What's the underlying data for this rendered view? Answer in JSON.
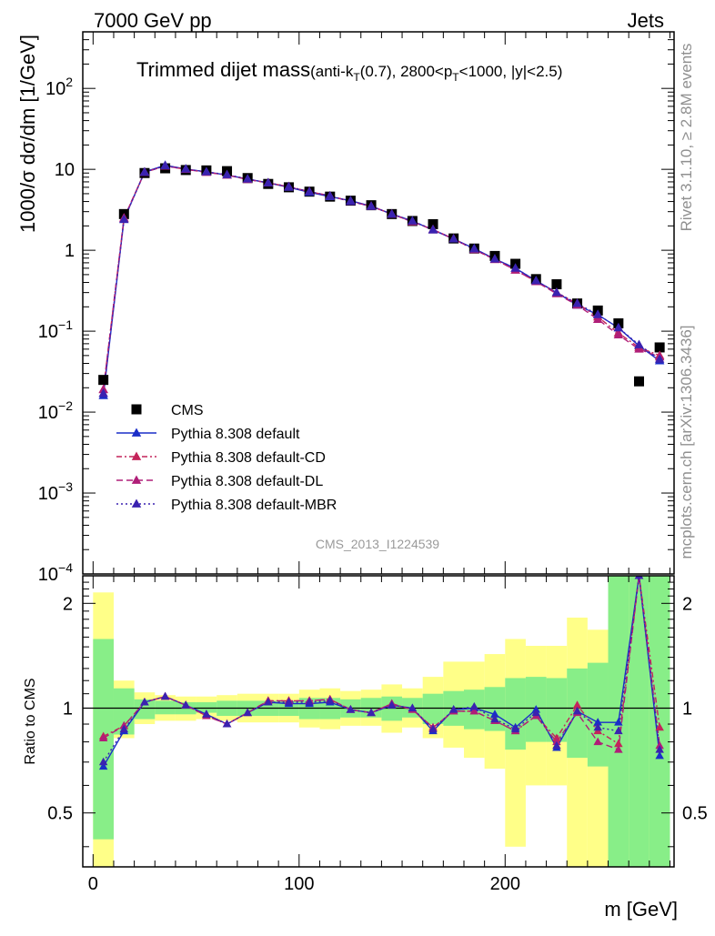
{
  "header": {
    "left": "7000 GeV pp",
    "right": "Jets"
  },
  "side_text": {
    "rivet": "Rivet 3.1.10, ≥ 2.8M events",
    "mcplots": "mcplots.cern.ch [arXiv:1306.3436]"
  },
  "chart_data": [
    {
      "type": "scatter",
      "title_main": "Trimmed dijet mass",
      "title_sub": "(anti-k_T(0.7), 2800<p_T<1000, |y|<2.5)",
      "ylabel": "1000/σ dσ/dm [1/GeV]",
      "xlabel": "m [GeV]",
      "watermark": "CMS_2013_I1224539",
      "xlim": [
        -5,
        282
      ],
      "ylim": [
        0.0001,
        500
      ],
      "yscale": "log",
      "x_ticks": [
        0,
        100,
        200
      ],
      "y_tick_labels": [
        {
          "value": 100,
          "label": "10",
          "exp": "2"
        },
        {
          "value": 10,
          "label": "10",
          "exp": ""
        },
        {
          "value": 1,
          "label": "1",
          "exp": ""
        },
        {
          "value": 0.1,
          "label": "10",
          "exp": "−1"
        },
        {
          "value": 0.01,
          "label": "10",
          "exp": "−2"
        },
        {
          "value": 0.001,
          "label": "10",
          "exp": "−3"
        },
        {
          "value": 0.0001,
          "label": "10",
          "exp": "−4"
        }
      ],
      "x": [
        5,
        15,
        25,
        35,
        45,
        55,
        65,
        75,
        85,
        95,
        105,
        115,
        125,
        135,
        145,
        155,
        165,
        175,
        185,
        195,
        205,
        215,
        225,
        235,
        245,
        255,
        265,
        275
      ],
      "series": [
        {
          "name": "CMS",
          "marker": "square",
          "color": "#000000",
          "line": "none",
          "values": [
            0.025,
            2.8,
            9.0,
            10.3,
            9.8,
            9.7,
            9.5,
            7.8,
            6.6,
            6.0,
            5.3,
            4.6,
            4.1,
            3.6,
            2.8,
            2.3,
            2.1,
            1.4,
            1.05,
            0.85,
            0.68,
            0.44,
            0.38,
            0.22,
            0.18,
            0.125,
            0.024,
            0.063
          ]
        },
        {
          "name": "Pythia 8.308 default",
          "marker": "triangle",
          "color": "#1a2ec8",
          "line": "solid",
          "values": [
            0.016,
            2.4,
            9.3,
            11.2,
            10.1,
            9.3,
            8.5,
            7.6,
            6.8,
            6.0,
            5.2,
            4.6,
            4.1,
            3.5,
            2.8,
            2.3,
            1.78,
            1.38,
            1.05,
            0.78,
            0.6,
            0.42,
            0.3,
            0.21,
            0.16,
            0.11,
            0.066,
            0.043
          ]
        },
        {
          "name": "Pythia 8.308 default-CD",
          "marker": "triangle",
          "color": "#c4245a",
          "line": "dashdot",
          "values": [
            0.019,
            2.5,
            9.2,
            11.0,
            10.0,
            9.2,
            8.5,
            7.5,
            6.8,
            6.1,
            5.3,
            4.7,
            4.0,
            3.5,
            2.8,
            2.25,
            1.8,
            1.38,
            1.02,
            0.77,
            0.57,
            0.41,
            0.3,
            0.22,
            0.15,
            0.095,
            0.063,
            0.05
          ]
        },
        {
          "name": "Pythia 8.308 default-DL",
          "marker": "triangle",
          "color": "#b01e78",
          "line": "dashed",
          "values": [
            0.019,
            2.5,
            9.2,
            11.0,
            10.0,
            9.2,
            8.5,
            7.5,
            6.8,
            6.1,
            5.3,
            4.7,
            4.0,
            3.5,
            2.8,
            2.25,
            1.8,
            1.38,
            1.02,
            0.77,
            0.57,
            0.41,
            0.29,
            0.21,
            0.14,
            0.09,
            0.06,
            0.048
          ]
        },
        {
          "name": "Pythia 8.308 default-MBR",
          "marker": "triangle",
          "color": "#3a22b0",
          "line": "dotted",
          "values": [
            0.017,
            2.4,
            9.2,
            11.1,
            10.1,
            9.3,
            8.6,
            7.6,
            6.8,
            6.1,
            5.3,
            4.7,
            4.0,
            3.5,
            2.8,
            2.3,
            1.8,
            1.38,
            1.04,
            0.78,
            0.6,
            0.42,
            0.3,
            0.22,
            0.16,
            0.11,
            0.068,
            0.045
          ]
        }
      ]
    },
    {
      "type": "line",
      "ylabel": "Ratio to CMS",
      "xlim": [
        -5,
        282
      ],
      "ylim": [
        0.35,
        2.4
      ],
      "yscale": "log",
      "y_ticks": [
        0.5,
        1,
        2
      ],
      "y_tick_labels": [
        "0.5",
        "1",
        "2"
      ],
      "x": [
        5,
        15,
        25,
        35,
        45,
        55,
        65,
        75,
        85,
        95,
        105,
        115,
        125,
        135,
        145,
        155,
        165,
        175,
        185,
        195,
        205,
        215,
        225,
        235,
        245,
        255,
        265,
        275
      ],
      "bands": {
        "bin_edges": [
          0,
          10,
          20,
          30,
          40,
          50,
          60,
          70,
          80,
          90,
          100,
          110,
          120,
          130,
          140,
          150,
          160,
          170,
          180,
          190,
          200,
          210,
          220,
          230,
          240,
          250,
          260,
          270,
          280
        ],
        "green_low": [
          0.42,
          0.84,
          0.93,
          0.96,
          0.96,
          0.97,
          0.95,
          0.95,
          0.95,
          0.95,
          0.93,
          0.93,
          0.94,
          0.94,
          0.92,
          0.94,
          0.9,
          0.89,
          0.87,
          0.86,
          0.76,
          0.8,
          0.8,
          0.72,
          0.68,
          0.35,
          0.35,
          0.35
        ],
        "green_high": [
          1.58,
          1.14,
          1.06,
          1.05,
          1.04,
          1.04,
          1.05,
          1.05,
          1.05,
          1.05,
          1.07,
          1.07,
          1.06,
          1.07,
          1.08,
          1.07,
          1.1,
          1.12,
          1.13,
          1.15,
          1.22,
          1.23,
          1.22,
          1.3,
          1.35,
          2.4,
          2.4,
          2.4
        ],
        "yellow_low": [
          0.35,
          0.82,
          0.9,
          0.92,
          0.92,
          0.93,
          0.92,
          0.91,
          0.91,
          0.91,
          0.88,
          0.87,
          0.89,
          0.89,
          0.85,
          0.88,
          0.82,
          0.77,
          0.72,
          0.67,
          0.4,
          0.6,
          0.6,
          0.35,
          0.35,
          0.35,
          0.35,
          0.35
        ],
        "yellow_high": [
          2.15,
          1.2,
          1.11,
          1.09,
          1.08,
          1.08,
          1.09,
          1.1,
          1.1,
          1.1,
          1.13,
          1.14,
          1.12,
          1.13,
          1.17,
          1.14,
          1.23,
          1.36,
          1.36,
          1.43,
          1.58,
          1.51,
          1.51,
          1.82,
          1.68,
          2.4,
          2.4,
          2.4
        ]
      },
      "series": [
        {
          "name": "Pythia 8.308 default",
          "color": "#1a2ec8",
          "line": "solid",
          "values": [
            0.68,
            0.86,
            1.04,
            1.08,
            1.02,
            0.96,
            0.9,
            0.97,
            1.04,
            1.03,
            1.03,
            1.04,
            0.99,
            0.97,
            1.02,
            1.0,
            0.86,
            0.99,
            1.0,
            0.96,
            0.88,
            0.99,
            0.77,
            0.98,
            0.91,
            0.91,
            2.4,
            0.73
          ]
        },
        {
          "name": "Pythia 8.308 default-CD",
          "color": "#c4245a",
          "line": "dashdot",
          "values": [
            0.83,
            0.89,
            1.04,
            1.08,
            1.02,
            0.95,
            0.9,
            0.97,
            1.05,
            1.05,
            1.05,
            1.06,
            0.99,
            0.97,
            1.03,
            0.99,
            0.88,
            0.98,
            0.98,
            0.92,
            0.86,
            0.95,
            0.82,
            1.02,
            0.86,
            0.79,
            2.4,
            0.88
          ]
        },
        {
          "name": "Pythia 8.308 default-DL",
          "color": "#b01e78",
          "line": "dashed",
          "values": [
            0.82,
            0.89,
            1.04,
            1.08,
            1.02,
            0.95,
            0.9,
            0.97,
            1.05,
            1.05,
            1.05,
            1.06,
            0.99,
            0.97,
            1.03,
            0.99,
            0.88,
            0.98,
            0.98,
            0.92,
            0.86,
            0.95,
            0.8,
            0.97,
            0.8,
            0.76,
            2.4,
            0.78
          ]
        },
        {
          "name": "Pythia 8.308 default-MBR",
          "color": "#3a22b0",
          "line": "dotted",
          "values": [
            0.7,
            0.87,
            1.04,
            1.08,
            1.02,
            0.96,
            0.9,
            0.97,
            1.04,
            1.04,
            1.04,
            1.05,
            0.99,
            0.97,
            1.02,
            1.0,
            0.87,
            0.99,
            1.01,
            0.93,
            0.87,
            0.97,
            0.78,
            0.98,
            0.88,
            0.86,
            2.4,
            0.76
          ]
        }
      ],
      "reference_line": 1
    }
  ]
}
